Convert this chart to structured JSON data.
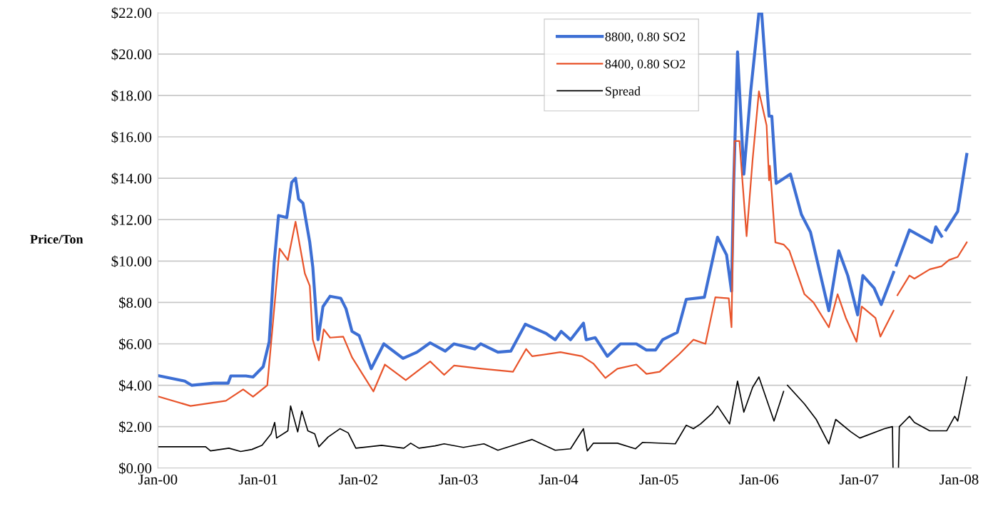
{
  "chart_data": {
    "type": "line",
    "ylabel": "Price/Ton",
    "xlim": [
      "2000-01-01",
      "2008-02-14"
    ],
    "ylim": [
      0,
      22
    ],
    "xticks": [
      {
        "value": "2000-01-01",
        "label": "Jan-00"
      },
      {
        "value": "2001-01-01",
        "label": "Jan-01"
      },
      {
        "value": "2002-01-01",
        "label": "Jan-02"
      },
      {
        "value": "2003-01-01",
        "label": "Jan-03"
      },
      {
        "value": "2004-01-01",
        "label": "Jan-04"
      },
      {
        "value": "2005-01-01",
        "label": "Jan-05"
      },
      {
        "value": "2006-01-01",
        "label": "Jan-06"
      },
      {
        "value": "2007-01-01",
        "label": "Jan-07"
      },
      {
        "value": "2008-01-01",
        "label": "Jan-08"
      }
    ],
    "yticks": [
      {
        "value": 0,
        "label": "$0.00"
      },
      {
        "value": 2,
        "label": "$2.00"
      },
      {
        "value": 4,
        "label": "$4.00"
      },
      {
        "value": 6,
        "label": "$6.00"
      },
      {
        "value": 8,
        "label": "$8.00"
      },
      {
        "value": 10,
        "label": "$10.00"
      },
      {
        "value": 12,
        "label": "$12.00"
      },
      {
        "value": 14,
        "label": "$14.00"
      },
      {
        "value": 16,
        "label": "$16.00"
      },
      {
        "value": 18,
        "label": "$18.00"
      },
      {
        "value": 20,
        "label": "$20.00"
      },
      {
        "value": 22,
        "label": "$22.00"
      }
    ],
    "grid": "y",
    "legend": "top",
    "marker": "none",
    "line_style": "solid",
    "series": [
      {
        "name": "8800, 0.80 SO2",
        "color": "#3d6fd4",
        "x": [
          "2000-01-01",
          "2000-04-08",
          "2000-05-03",
          "2000-07-22",
          "2000-09-13",
          "2000-09-23",
          "2000-11-17",
          "2000-12-13",
          "2001-01-19",
          "2001-02-10",
          "2001-02-28",
          "2001-03-16",
          "2001-04-15",
          "2001-05-03",
          "2001-05-17",
          "2001-05-28",
          "2001-06-13",
          "2001-07-08",
          "2001-07-19",
          "2001-08-07",
          "2001-08-25",
          "2001-09-20",
          "2001-10-29",
          "2001-11-17",
          "2001-12-09",
          "2002-01-04",
          "2002-02-17",
          "2002-04-04",
          "2002-06-13",
          "2002-08-03",
          "2002-09-20",
          "2002-09-27",
          "2002-11-14",
          "2002-12-16",
          "2003-03-02",
          "2003-03-23",
          "2003-05-25",
          "2003-07-11",
          "2003-09-02",
          "2003-11-17",
          "2003-12-20",
          "2004-01-11",
          "2004-02-14",
          "2004-04-01",
          "2004-04-11",
          "2004-05-14",
          "2004-06-27",
          "2004-08-14",
          "2004-10-11",
          "2004-11-17",
          "2004-12-20",
          "2005-01-15",
          "2005-03-09",
          "2005-04-11",
          "2005-06-16",
          "2005-08-03",
          "2005-09-05",
          "2005-09-23",
          "2005-10-01",
          "2005-10-15",
          "2005-11-07",
          "2005-12-02",
          "2006-01-01",
          "2006-01-11",
          "2006-02-07",
          "2006-02-17",
          "2006-03-05",
          "2006-04-26",
          "2006-06-05",
          "2006-07-08",
          "2006-09-13",
          "2006-10-19",
          "2006-11-21",
          "2006-12-27",
          "2007-01-15",
          "2007-02-25",
          "2007-03-23",
          "2007-05-07",
          "2007-05-12",
          "2007-05-17",
          "2007-07-04",
          "2007-09-23",
          "2007-10-08",
          "2007-10-29",
          "2007-11-07",
          "2007-11-14",
          "2007-12-27",
          "2008-01-29"
        ],
        "values": [
          4.47,
          4.2,
          4.0,
          4.1,
          4.1,
          4.45,
          4.45,
          4.4,
          4.9,
          6.1,
          9.9,
          12.2,
          12.1,
          13.8,
          14.0,
          13.0,
          12.8,
          10.9,
          9.7,
          6.2,
          7.8,
          8.3,
          8.2,
          7.7,
          6.6,
          6.4,
          4.8,
          6.0,
          5.3,
          5.6,
          6.05,
          6.0,
          5.65,
          6.0,
          5.75,
          6.0,
          5.6,
          5.65,
          6.95,
          6.5,
          6.2,
          6.6,
          6.2,
          7.0,
          6.2,
          6.3,
          5.4,
          6.0,
          6.0,
          5.7,
          5.7,
          6.2,
          6.55,
          8.15,
          8.25,
          11.15,
          10.3,
          8.55,
          13.75,
          20.1,
          14.2,
          18.2,
          22.0,
          22.0,
          17.0,
          17.0,
          13.75,
          14.2,
          12.25,
          11.4,
          7.6,
          10.5,
          9.3,
          7.4,
          9.3,
          8.7,
          7.9,
          9.45,
          null,
          9.8,
          11.5,
          10.9,
          11.65,
          11.2,
          null,
          11.5,
          12.4,
          15.15
        ]
      },
      {
        "name": "8400, 0.80 SO2",
        "color": "#e8542b",
        "x": [
          "2000-01-04",
          "2000-04-29",
          "2000-09-05",
          "2000-11-07",
          "2000-12-13",
          "2001-02-03",
          "2001-03-20",
          "2001-04-19",
          "2001-05-17",
          "2001-06-20",
          "2001-07-08",
          "2001-07-19",
          "2001-08-10",
          "2001-08-28",
          "2001-09-20",
          "2001-11-07",
          "2001-12-09",
          "2002-02-25",
          "2002-04-08",
          "2002-06-23",
          "2002-09-20",
          "2002-11-10",
          "2002-12-16",
          "2003-03-27",
          "2003-07-19",
          "2003-09-05",
          "2003-09-27",
          "2004-01-08",
          "2004-03-27",
          "2004-05-07",
          "2004-06-20",
          "2004-08-03",
          "2004-10-11",
          "2004-11-17",
          "2005-01-04",
          "2005-03-16",
          "2005-05-07",
          "2005-06-20",
          "2005-07-26",
          "2005-09-13",
          "2005-09-23",
          "2005-10-04",
          "2005-10-22",
          "2005-11-17",
          "2005-12-09",
          "2006-01-01",
          "2006-01-29",
          "2006-02-07",
          "2006-02-10",
          "2006-03-02",
          "2006-04-01",
          "2006-04-22",
          "2006-06-16",
          "2006-07-19",
          "2006-09-13",
          "2006-10-15",
          "2006-11-14",
          "2006-12-23",
          "2007-01-11",
          "2007-03-02",
          "2007-03-20",
          "2007-05-07",
          "2007-05-14",
          "2007-05-21",
          "2007-07-04",
          "2007-07-22",
          "2007-09-16",
          "2007-10-29",
          "2007-11-25",
          "2007-12-27",
          "2008-01-29"
        ],
        "values": [
          3.45,
          3.0,
          3.25,
          3.8,
          3.45,
          4.0,
          10.6,
          10.05,
          11.9,
          9.4,
          8.8,
          6.2,
          5.2,
          6.7,
          6.3,
          6.35,
          5.35,
          3.7,
          5.0,
          4.25,
          5.15,
          4.5,
          4.95,
          4.8,
          4.65,
          5.75,
          5.4,
          5.6,
          5.4,
          5.05,
          4.35,
          4.8,
          5.0,
          4.55,
          4.65,
          5.5,
          6.2,
          6.0,
          8.25,
          8.2,
          6.8,
          15.8,
          15.8,
          11.2,
          14.9,
          18.2,
          16.55,
          13.9,
          14.6,
          10.9,
          10.8,
          10.5,
          8.4,
          8.0,
          6.8,
          8.4,
          7.25,
          6.1,
          7.8,
          7.25,
          6.35,
          7.6,
          null,
          8.35,
          9.3,
          9.15,
          9.6,
          9.75,
          10.05,
          10.2,
          10.9
        ]
      },
      {
        "name": "Spread",
        "color": "#000000",
        "x": [
          "2000-01-04",
          "2000-06-23",
          "2000-07-11",
          "2000-09-16",
          "2000-10-29",
          "2000-12-09",
          "2001-01-15",
          "2001-02-17",
          "2001-03-02",
          "2001-03-09",
          "2001-04-19",
          "2001-04-29",
          "2001-05-25",
          "2001-06-09",
          "2001-07-01",
          "2001-07-26",
          "2001-08-10",
          "2001-09-13",
          "2001-10-26",
          "2001-11-25",
          "2001-12-23",
          "2002-03-27",
          "2002-06-16",
          "2002-07-11",
          "2002-08-10",
          "2002-10-08",
          "2002-11-10",
          "2003-01-19",
          "2003-04-04",
          "2003-05-25",
          "2003-08-07",
          "2003-09-27",
          "2003-12-20",
          "2004-02-14",
          "2004-04-01",
          "2004-04-15",
          "2004-05-07",
          "2004-08-03",
          "2004-10-08",
          "2004-11-03",
          "2005-03-02",
          "2005-04-11",
          "2005-05-07",
          "2005-06-02",
          "2005-07-15",
          "2005-08-03",
          "2005-09-16",
          "2005-10-15",
          "2005-11-07",
          "2005-12-09",
          "2006-01-01",
          "2006-02-25",
          "2006-04-01",
          "2006-04-08",
          "2006-04-15",
          "2006-06-16",
          "2006-07-29",
          "2006-09-13",
          "2006-10-08",
          "2006-12-02",
          "2007-01-04",
          "2007-04-04",
          "2007-05-03",
          "2007-05-05",
          "2007-05-14",
          "2007-05-25",
          "2007-05-28",
          "2007-07-04",
          "2007-07-22",
          "2007-09-16",
          "2007-10-29",
          "2007-11-17",
          "2007-12-16",
          "2007-12-27",
          "2008-01-29"
        ],
        "values": [
          1.03,
          1.03,
          0.83,
          0.96,
          0.8,
          0.9,
          1.1,
          1.65,
          2.2,
          1.45,
          1.8,
          3.0,
          1.75,
          2.75,
          1.8,
          1.65,
          1.03,
          1.5,
          1.9,
          1.7,
          0.96,
          1.1,
          0.96,
          1.2,
          0.96,
          1.07,
          1.17,
          1.0,
          1.17,
          0.86,
          1.17,
          1.38,
          0.86,
          0.93,
          1.9,
          0.83,
          1.2,
          1.2,
          0.93,
          1.24,
          1.17,
          2.07,
          1.9,
          2.13,
          2.65,
          3.0,
          2.13,
          4.2,
          2.7,
          3.9,
          4.4,
          2.27,
          3.7,
          null,
          4.0,
          3.1,
          2.35,
          1.17,
          2.35,
          1.75,
          1.45,
          1.9,
          2.0,
          0,
          null,
          0,
          2.0,
          2.5,
          2.2,
          1.8,
          1.8,
          1.8,
          2.5,
          2.27,
          4.4
        ]
      }
    ]
  }
}
